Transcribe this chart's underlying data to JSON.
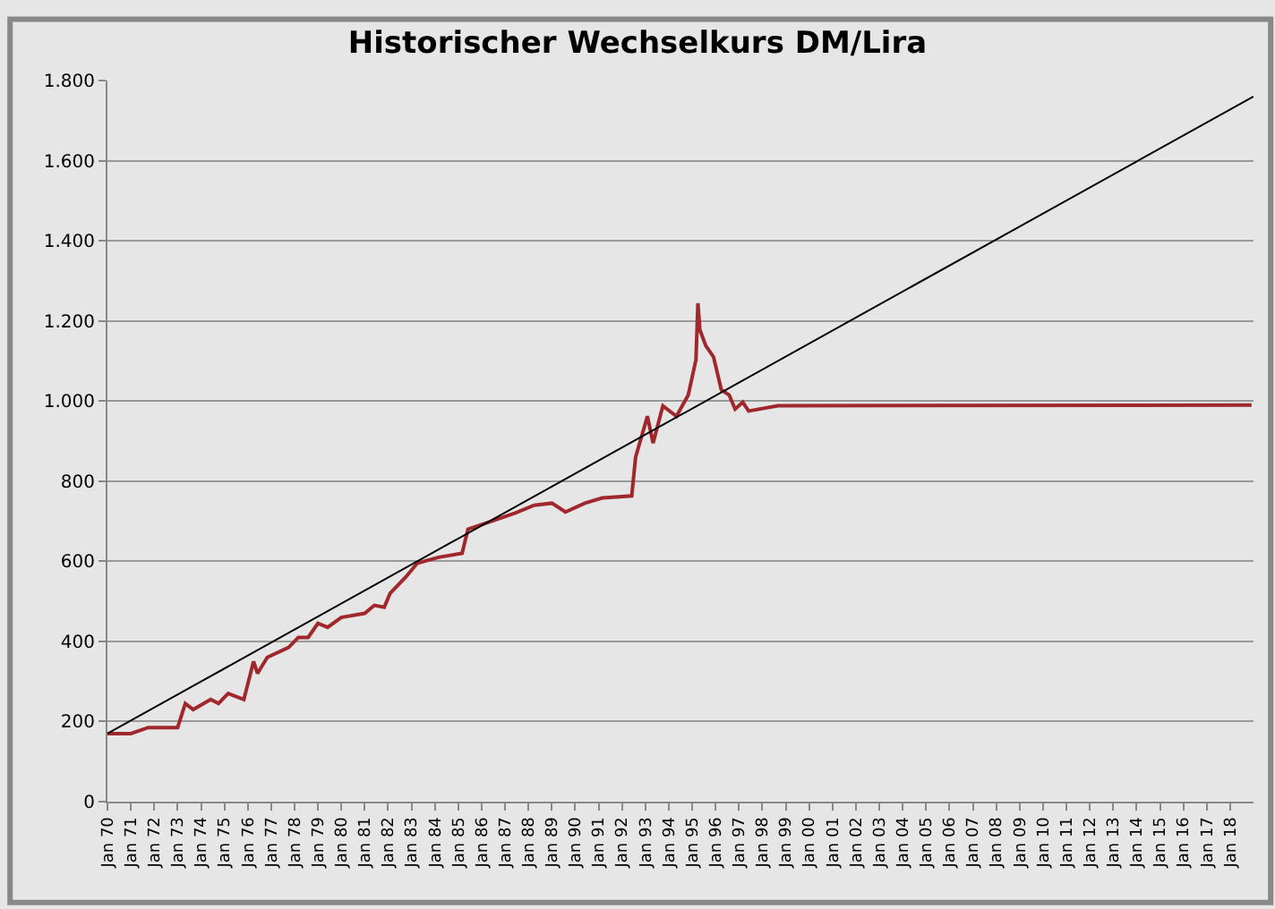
{
  "chart_data": {
    "type": "line",
    "title": "Historischer Wechselkurs DM/Lira",
    "series": [
      {
        "color": "#a0282d",
        "x": [
          "1970-01",
          "1971-01",
          "1971-10",
          "1973-01",
          "1973-05",
          "1973-09",
          "1974-06",
          "1974-10",
          "1975-03",
          "1975-11",
          "1976-04",
          "1976-06",
          "1976-11",
          "1977-10",
          "1978-03",
          "1978-08",
          "1979-01",
          "1979-06",
          "1980-01",
          "1981-01",
          "1981-06",
          "1981-11",
          "1982-02",
          "1982-10",
          "1983-04",
          "1984-03",
          "1985-03",
          "1985-06",
          "1986-06",
          "1987-06",
          "1988-04",
          "1989-01",
          "1989-08",
          "1990-06",
          "1991-03",
          "1992-06",
          "1992-08",
          "1993-02",
          "1993-05",
          "1993-10",
          "1994-05",
          "1994-11",
          "1995-03",
          "1995-04",
          "1995-05",
          "1995-08",
          "1995-12",
          "1996-04",
          "1996-08",
          "1996-11",
          "1997-03",
          "1997-06",
          "1998-09",
          "2018-12"
        ],
        "values": [
          170,
          170,
          185,
          185,
          245,
          230,
          255,
          245,
          270,
          255,
          350,
          320,
          360,
          385,
          410,
          410,
          445,
          435,
          460,
          470,
          490,
          485,
          520,
          560,
          595,
          610,
          620,
          680,
          700,
          720,
          740,
          745,
          723,
          745,
          758,
          763,
          860,
          962,
          895,
          988,
          962,
          1015,
          1103,
          1244,
          1178,
          1138,
          1110,
          1028,
          1015,
          980,
          997,
          975,
          988,
          990
        ]
      },
      {
        "type": "line",
        "color": "#000000",
        "x": [
          "1970-01",
          "2019-01"
        ],
        "values": [
          170,
          1760
        ]
      }
    ],
    "ylim": [
      0,
      1800
    ],
    "yticks": [
      0,
      200,
      400,
      600,
      800,
      {
        "value": 1000,
        "label": "1.000"
      },
      {
        "value": 1200,
        "label": "1.200"
      },
      {
        "value": 1400,
        "label": "1.400"
      },
      {
        "value": 1600,
        "label": "1.600"
      },
      {
        "value": 1800,
        "label": "1.800"
      }
    ],
    "xlim": [
      "1970-01",
      "2019-01"
    ],
    "xticks": [
      {
        "value": "1970-01",
        "label": "Jan 70"
      },
      {
        "value": "1971-01",
        "label": "Jan 71"
      },
      {
        "value": "1972-01",
        "label": "Jan 72"
      },
      {
        "value": "1973-01",
        "label": "Jan 73"
      },
      {
        "value": "1974-01",
        "label": "Jan 74"
      },
      {
        "value": "1975-01",
        "label": "Jan 75"
      },
      {
        "value": "1976-01",
        "label": "Jan 76"
      },
      {
        "value": "1977-01",
        "label": "Jan 77"
      },
      {
        "value": "1978-01",
        "label": "Jan 78"
      },
      {
        "value": "1979-01",
        "label": "Jan 79"
      },
      {
        "value": "1980-01",
        "label": "Jan 80"
      },
      {
        "value": "1981-01",
        "label": "Jan 81"
      },
      {
        "value": "1982-01",
        "label": "Jan 82"
      },
      {
        "value": "1983-01",
        "label": "Jan 83"
      },
      {
        "value": "1984-01",
        "label": "Jan 84"
      },
      {
        "value": "1985-01",
        "label": "Jan 85"
      },
      {
        "value": "1986-01",
        "label": "Jan 86"
      },
      {
        "value": "1987-01",
        "label": "Jan 87"
      },
      {
        "value": "1988-01",
        "label": "Jan 88"
      },
      {
        "value": "1989-01",
        "label": "Jan 89"
      },
      {
        "value": "1990-01",
        "label": "Jan 90"
      },
      {
        "value": "1991-01",
        "label": "Jan 91"
      },
      {
        "value": "1992-01",
        "label": "Jan 92"
      },
      {
        "value": "1993-01",
        "label": "Jan 93"
      },
      {
        "value": "1994-01",
        "label": "Jan 94"
      },
      {
        "value": "1995-01",
        "label": "Jan 95"
      },
      {
        "value": "1996-01",
        "label": "Jan 96"
      },
      {
        "value": "1997-01",
        "label": "Jan 97"
      },
      {
        "value": "1998-01",
        "label": "Jan 98"
      },
      {
        "value": "1999-01",
        "label": "Jan 99"
      },
      {
        "value": "2000-01",
        "label": "Jan 00"
      },
      {
        "value": "2001-01",
        "label": "Jan 01"
      },
      {
        "value": "2002-01",
        "label": "Jan 02"
      },
      {
        "value": "2003-01",
        "label": "Jan 03"
      },
      {
        "value": "2004-01",
        "label": "Jan 04"
      },
      {
        "value": "2005-01",
        "label": "Jan 05"
      },
      {
        "value": "2006-01",
        "label": "Jan 06"
      },
      {
        "value": "2007-01",
        "label": "Jan 07"
      },
      {
        "value": "2008-01",
        "label": "Jan 08"
      },
      {
        "value": "2009-01",
        "label": "Jan 09"
      },
      {
        "value": "2010-01",
        "label": "Jan 10"
      },
      {
        "value": "2011-01",
        "label": "Jan 11"
      },
      {
        "value": "2012-01",
        "label": "Jan 12"
      },
      {
        "value": "2013-01",
        "label": "Jan 13"
      },
      {
        "value": "2014-01",
        "label": "Jan 14"
      },
      {
        "value": "2015-01",
        "label": "Jan 15"
      },
      {
        "value": "2016-01",
        "label": "Jan 16"
      },
      {
        "value": "2017-01",
        "label": "Jan 17"
      },
      {
        "value": "2018-01",
        "label": "Jan 18"
      }
    ],
    "grid": "y",
    "legend": false
  }
}
